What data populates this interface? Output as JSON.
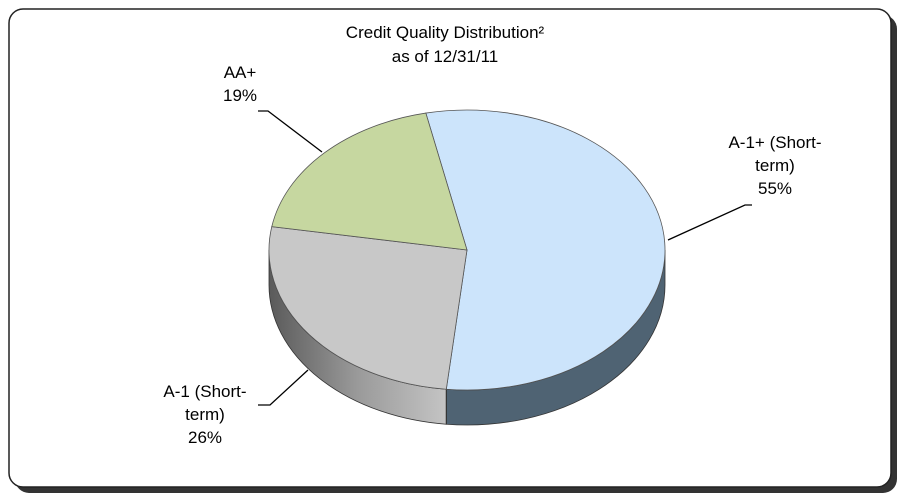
{
  "chart_data": {
    "type": "pie",
    "title": "Credit Quality Distribution²",
    "subtitle": "as of 12/31/11",
    "categories": [
      "A-1+ (Short-term)",
      "A-1 (Short-term)",
      "AA+"
    ],
    "values": [
      55,
      26,
      19
    ],
    "value_labels": [
      "55%",
      "26%",
      "19%"
    ],
    "colors": [
      "#cce4fb",
      "#c8c8c8",
      "#c6d7a0"
    ],
    "side_colors": [
      "#4f6373",
      "#8a8a8a",
      "#7d8a60"
    ]
  }
}
